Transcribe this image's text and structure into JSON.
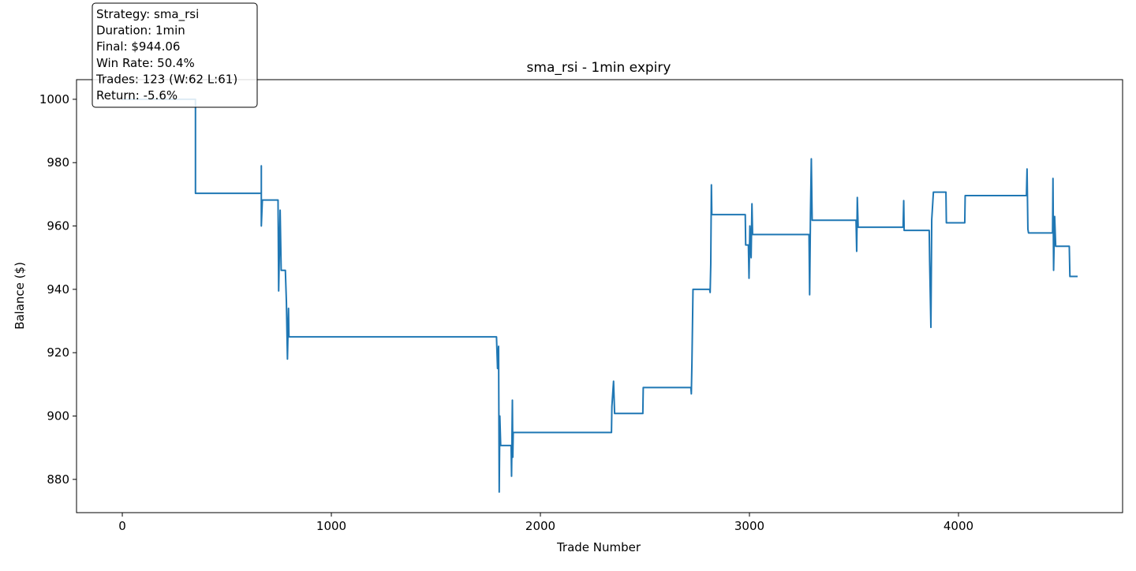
{
  "chart_data": {
    "type": "line",
    "title": "sma_rsi - 1min expiry",
    "xlabel": "Trade Number",
    "ylabel": "Balance ($)",
    "annotation": [
      "Strategy: sma_rsi",
      "Duration: 1min",
      "Final: $944.06",
      "Win Rate: 50.4%",
      "Trades: 123 (W:62 L:61)",
      "Return: -5.6%"
    ],
    "color": "#1f77b4",
    "x": [
      0,
      350,
      350,
      665,
      665,
      665,
      670,
      745,
      748,
      755,
      760,
      780,
      785,
      790,
      795,
      797,
      1790,
      1795,
      1800,
      1803,
      1806,
      1810,
      1860,
      1862,
      1866,
      1868,
      1870,
      2340,
      2342,
      2350,
      2355,
      2490,
      2492,
      2720,
      2722,
      2725,
      2730,
      2810,
      2812,
      2815,
      2818,
      2820,
      2980,
      2982,
      2995,
      2998,
      3002,
      3008,
      3012,
      3015,
      3285,
      3288,
      3292,
      3296,
      3300,
      3510,
      3513,
      3516,
      3520,
      3735,
      3738,
      3740,
      3860,
      3862,
      3865,
      3868,
      3872,
      3880,
      3940,
      3942,
      4030,
      4032,
      4325,
      4328,
      4332,
      4335,
      4450,
      4452,
      4455,
      4460,
      4465,
      4530,
      4533,
      4570
    ],
    "values": [
      1000,
      1000,
      970.3,
      970.3,
      979,
      960,
      968.2,
      968.2,
      939.5,
      965,
      946,
      946,
      936,
      918,
      934,
      925,
      925,
      915,
      922,
      876,
      900,
      890.7,
      890.7,
      881,
      905,
      887,
      894.8,
      894.8,
      903,
      911,
      900.8,
      900.8,
      909,
      909,
      907,
      917,
      940,
      940,
      939,
      948,
      973,
      963.6,
      963.6,
      954,
      954,
      943.5,
      960,
      950,
      967,
      957.3,
      957.3,
      938.3,
      964,
      981.2,
      961.8,
      961.8,
      952,
      969,
      959.6,
      959.6,
      968,
      958.6,
      958.6,
      949,
      938.5,
      928,
      962,
      970.7,
      970.7,
      961,
      961,
      969.6,
      969.6,
      978,
      959,
      957.8,
      957.8,
      975,
      946,
      963,
      953.6,
      953.6,
      944.06,
      944.06
    ],
    "xlim": [
      -219,
      4785
    ],
    "ylim": [
      869.5,
      1006.2
    ],
    "xticks": [
      0,
      1000,
      2000,
      3000,
      4000
    ],
    "yticks": [
      880,
      900,
      920,
      940,
      960,
      980,
      1000
    ]
  }
}
